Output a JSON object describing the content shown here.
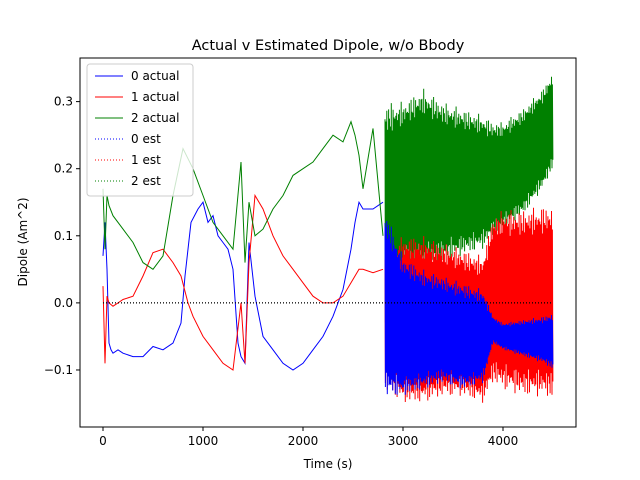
{
  "chart_data": {
    "type": "line",
    "title": "Actual v Estimated Dipole, w/o Bbody",
    "xlabel": "Time (s)",
    "ylabel": "Dipole (Am^2)",
    "xlim": [
      -230,
      4730
    ],
    "ylim": [
      -0.185,
      0.365
    ],
    "xticks": [
      0,
      1000,
      2000,
      3000,
      4000
    ],
    "yticks": [
      -0.1,
      0.0,
      0.1,
      0.2,
      0.3
    ],
    "xtick_labels": [
      "0",
      "1000",
      "2000",
      "3000",
      "4000"
    ],
    "ytick_labels": [
      "−0.1",
      "0.0",
      "0.1",
      "0.2",
      "0.3"
    ],
    "grid": false,
    "legend_position": "top-left",
    "legend_entries": [
      "0 actual",
      "1 actual",
      "2 actual",
      "0 est",
      "1 est",
      "2 est"
    ],
    "series": [
      {
        "name": "0 actual",
        "color": "#0000ff",
        "style": "solid",
        "x": [
          0,
          20,
          40,
          60,
          80,
          100,
          150,
          200,
          300,
          400,
          500,
          600,
          700,
          780,
          820,
          880,
          950,
          1000,
          1050,
          1100,
          1150,
          1200,
          1250,
          1300,
          1350,
          1380,
          1420,
          1460,
          1520,
          1600,
          1700,
          1800,
          1900,
          2000,
          2100,
          2200,
          2300,
          2400,
          2480,
          2520,
          2560,
          2600,
          2700,
          2800
        ],
        "y": [
          0.07,
          0.12,
          0.05,
          -0.06,
          -0.07,
          -0.075,
          -0.07,
          -0.075,
          -0.08,
          -0.08,
          -0.065,
          -0.07,
          -0.06,
          -0.03,
          0.04,
          0.12,
          0.14,
          0.15,
          0.12,
          0.13,
          0.1,
          0.09,
          0.08,
          0.05,
          -0.06,
          -0.08,
          -0.09,
          0.09,
          0.01,
          -0.05,
          -0.07,
          -0.09,
          -0.1,
          -0.09,
          -0.07,
          -0.05,
          -0.02,
          0.02,
          0.08,
          0.12,
          0.15,
          0.14,
          0.14,
          0.15
        ]
      },
      {
        "name": "1 actual",
        "color": "#ff0000",
        "style": "solid",
        "x": [
          0,
          20,
          40,
          60,
          100,
          150,
          200,
          300,
          400,
          500,
          600,
          700,
          780,
          850,
          900,
          1000,
          1100,
          1200,
          1300,
          1380,
          1420,
          1460,
          1520,
          1600,
          1700,
          1800,
          1900,
          2000,
          2100,
          2200,
          2300,
          2400,
          2480,
          2520,
          2560,
          2600,
          2700,
          2800
        ],
        "y": [
          0.025,
          -0.09,
          0.01,
          0.0,
          -0.005,
          0.0,
          0.005,
          0.01,
          0.04,
          0.075,
          0.08,
          0.06,
          0.04,
          0.0,
          -0.02,
          -0.05,
          -0.07,
          -0.09,
          -0.1,
          0.0,
          -0.09,
          0.06,
          0.16,
          0.14,
          0.1,
          0.07,
          0.05,
          0.03,
          0.01,
          0.0,
          0.0,
          0.01,
          0.03,
          0.04,
          0.05,
          0.05,
          0.045,
          0.05
        ]
      },
      {
        "name": "2 actual",
        "color": "#008000",
        "style": "solid",
        "x": [
          0,
          20,
          40,
          60,
          100,
          200,
          300,
          400,
          500,
          600,
          700,
          800,
          900,
          1000,
          1100,
          1200,
          1300,
          1380,
          1420,
          1460,
          1520,
          1600,
          1700,
          1800,
          1900,
          2000,
          2100,
          2200,
          2300,
          2400,
          2480,
          2520,
          2560,
          2600,
          2700,
          2800
        ],
        "y": [
          0.17,
          0.08,
          0.16,
          0.145,
          0.13,
          0.11,
          0.09,
          0.06,
          0.05,
          0.07,
          0.16,
          0.23,
          0.2,
          0.16,
          0.12,
          0.1,
          0.08,
          0.21,
          0.06,
          0.15,
          0.1,
          0.11,
          0.14,
          0.16,
          0.19,
          0.2,
          0.21,
          0.23,
          0.25,
          0.24,
          0.27,
          0.25,
          0.22,
          0.17,
          0.26,
          0.1
        ]
      },
      {
        "name": "0 est",
        "color": "#0000ff",
        "style": "dotted",
        "x": [
          0,
          4500
        ],
        "y": [
          0.0,
          0.0
        ]
      },
      {
        "name": "1 est",
        "color": "#ff0000",
        "style": "dotted",
        "x": [
          0,
          4500
        ],
        "y": [
          0.0,
          0.0
        ]
      },
      {
        "name": "2 est",
        "color": "#008000",
        "style": "dotted",
        "x": [
          0,
          4500
        ],
        "y": [
          0.0,
          0.0
        ]
      }
    ],
    "oscillation_bands": [
      {
        "name": "2 actual",
        "color": "#008000",
        "x": [
          2820,
          3000,
          3200,
          3400,
          3600,
          3800,
          3900,
          4000,
          4200,
          4400,
          4500
        ],
        "upper": [
          0.3,
          0.3,
          0.32,
          0.3,
          0.29,
          0.28,
          0.27,
          0.27,
          0.29,
          0.32,
          0.345
        ],
        "lower": [
          -0.05,
          0.05,
          0.05,
          0.06,
          0.07,
          0.08,
          0.1,
          0.11,
          0.13,
          0.17,
          0.2
        ]
      },
      {
        "name": "1 actual",
        "color": "#ff0000",
        "x": [
          2820,
          3000,
          3200,
          3400,
          3600,
          3800,
          3900,
          4000,
          4200,
          4400,
          4500
        ],
        "upper": [
          0.08,
          0.1,
          0.1,
          0.09,
          0.08,
          0.07,
          0.13,
          0.14,
          0.14,
          0.145,
          0.145
        ],
        "lower": [
          -0.13,
          -0.15,
          -0.15,
          -0.14,
          -0.14,
          -0.15,
          -0.12,
          -0.13,
          -0.14,
          -0.14,
          -0.145
        ]
      },
      {
        "name": "0 actual",
        "color": "#0000ff",
        "x": [
          2820,
          3000,
          3200,
          3400,
          3600,
          3800,
          3900,
          4000,
          4200,
          4400,
          4500
        ],
        "upper": [
          0.14,
          0.07,
          0.05,
          0.04,
          0.03,
          0.02,
          -0.02,
          -0.03,
          -0.025,
          -0.02,
          -0.015
        ],
        "lower": [
          -0.14,
          -0.14,
          -0.13,
          -0.12,
          -0.13,
          -0.12,
          -0.06,
          -0.07,
          -0.08,
          -0.09,
          -0.1
        ]
      }
    ]
  }
}
